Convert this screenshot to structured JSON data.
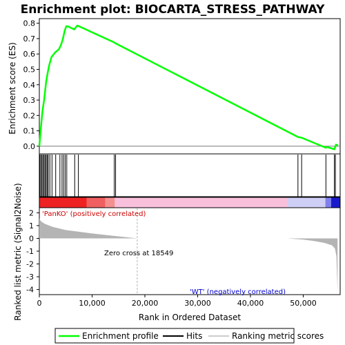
{
  "title": "Enrichment plot: BIOCARTA_STRESS_PATHWAY",
  "colors": {
    "enrichment_line": "#00ff00",
    "hits": "#000000",
    "metric_fill": "#b4b4b4",
    "positive_label": "#cc0000",
    "negative_label": "#0000cc",
    "zero_line": "#b4b4b4"
  },
  "chart_data": [
    {
      "type": "line",
      "panel": "enrichment",
      "ylabel": "Enrichment score (ES)",
      "xlim": [
        0,
        57000
      ],
      "ylim": [
        -0.05,
        0.83
      ],
      "yticks": [
        "0.0",
        "0.1",
        "0.2",
        "0.3",
        "0.4",
        "0.5",
        "0.6",
        "0.7",
        "0.8"
      ],
      "grid": false,
      "series": [
        {
          "name": "Enrichment profile",
          "x": [
            0,
            200,
            400,
            600,
            900,
            1100,
            1300,
            1600,
            1900,
            2300,
            3000,
            3700,
            4100,
            4400,
            4600,
            4800,
            5100,
            5400,
            6600,
            7200,
            14200,
            14400,
            49000,
            49700,
            54300,
            54500,
            55900,
            56200,
            56600
          ],
          "y": [
            0.0,
            0.08,
            0.16,
            0.23,
            0.3,
            0.36,
            0.42,
            0.48,
            0.53,
            0.58,
            0.61,
            0.63,
            0.66,
            0.69,
            0.72,
            0.75,
            0.78,
            0.78,
            0.76,
            0.785,
            0.675,
            0.67,
            0.06,
            0.055,
            -0.01,
            -0.005,
            -0.02,
            0.01,
            0.005
          ]
        }
      ],
      "legend": [
        "Enrichment profile",
        "Hits",
        "Ranking metric scores"
      ],
      "legend_position": "bottom"
    },
    {
      "type": "hits",
      "panel": "hits",
      "x": [
        100,
        300,
        500,
        700,
        900,
        1100,
        1300,
        1500,
        1700,
        2000,
        2400,
        3100,
        3900,
        4300,
        4600,
        4900,
        5200,
        6700,
        7400,
        14200,
        14450,
        49000,
        49700,
        54300,
        55900,
        56100
      ]
    },
    {
      "type": "area",
      "panel": "ranked_metric",
      "xlabel": "Rank in Ordered Dataset",
      "ylabel": "Ranked list metric (Signal2Noise)",
      "xlim": [
        0,
        57000
      ],
      "ylim": [
        -4.4,
        2.4
      ],
      "xticks": [
        "0",
        "10,000",
        "20,000",
        "30,000",
        "40,000",
        "50,000"
      ],
      "yticks": [
        "2",
        "1",
        "0",
        "-1",
        "-2",
        "-3",
        "-4"
      ],
      "x": [
        0,
        300,
        1000,
        2500,
        5000,
        10000,
        14000,
        18549,
        47000,
        50000,
        52000,
        54000,
        55500,
        56000,
        56300,
        56500
      ],
      "y": [
        1.55,
        1.35,
        1.15,
        0.9,
        0.65,
        0.38,
        0.2,
        0.0,
        0.0,
        -0.1,
        -0.2,
        -0.35,
        -0.55,
        -0.8,
        -1.4,
        -4.2
      ],
      "zero_cross": 18549,
      "annotations": [
        "Zero cross at 18549",
        "'PanKO' (positively correlated)",
        "'WT' (negatively correlated)"
      ]
    }
  ]
}
